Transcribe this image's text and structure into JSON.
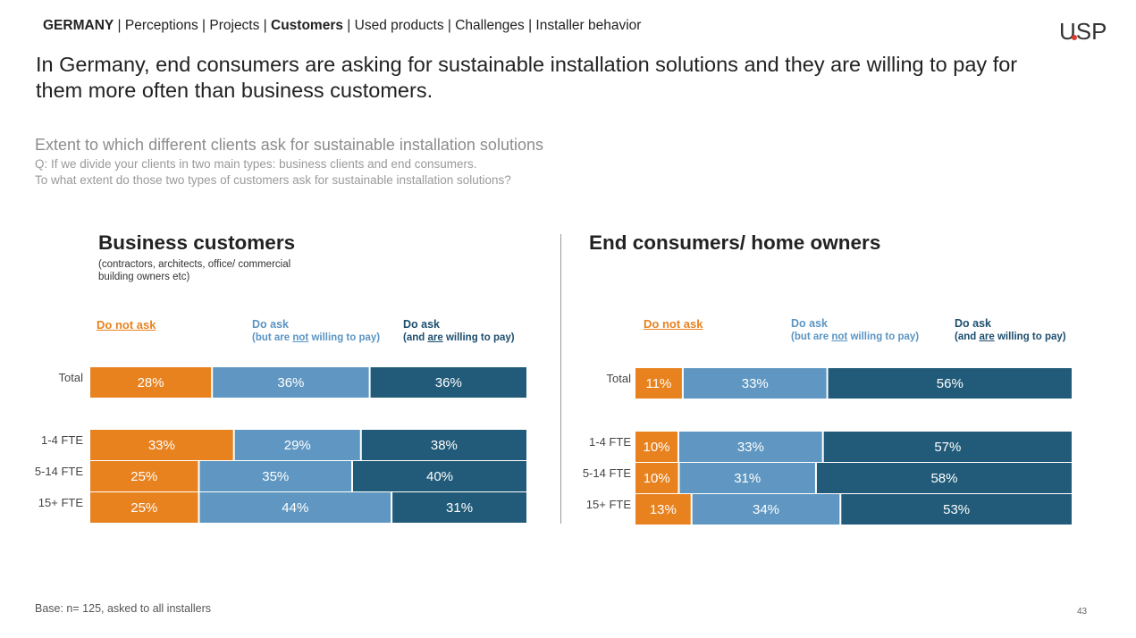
{
  "breadcrumb": {
    "country": "GERMANY",
    "sep": " | ",
    "items": [
      "Perceptions",
      "Projects",
      "Customers",
      "Used products",
      "Challenges",
      "Installer behavior"
    ],
    "active": "Customers"
  },
  "logo": "USP",
  "headline": "In Germany, end consumers are asking for sustainable installation solutions and they are willing to pay for them more often than business customers.",
  "subtitle": "Extent to which different clients ask for sustainable installation solutions",
  "question_line1": "Q: If we divide your clients in two main types: business clients and end consumers.",
  "question_line2": "To what extent do those two types of customers ask for sustainable installation solutions?",
  "legend": {
    "not_ask": "Do not ask",
    "ask_not_pay_title": "Do ask",
    "ask_not_pay_sub_pre": "(but are ",
    "ask_not_pay_sub_u": "not",
    "ask_not_pay_sub_post": " willing to pay)",
    "ask_pay_title": "Do ask",
    "ask_pay_sub_pre": "(and ",
    "ask_pay_sub_u": "are",
    "ask_pay_sub_post": " willing to pay)"
  },
  "colors": {
    "not_ask": "#e8821f",
    "ask_not_pay": "#5f97c2",
    "ask_pay": "#215b79"
  },
  "footer": "Base: n= 125, asked to all installers",
  "page_number": "43",
  "chart_data": [
    {
      "type": "bar",
      "orientation": "horizontal-stacked-100",
      "title": "Business customers",
      "subtitle": "(contractors, architects, office/ commercial building owners etc)",
      "categories": [
        "Total",
        "1-4 FTE",
        "5-14 FTE",
        "15+ FTE"
      ],
      "series": [
        {
          "name": "Do not ask",
          "values": [
            28,
            33,
            25,
            25
          ]
        },
        {
          "name": "Do ask (but are not willing to pay)",
          "values": [
            36,
            29,
            35,
            44
          ]
        },
        {
          "name": "Do ask (and are willing to pay)",
          "values": [
            36,
            38,
            40,
            31
          ]
        }
      ],
      "labels": [
        [
          "28%",
          "33%",
          "25%",
          "25%"
        ],
        [
          "36%",
          "29%",
          "35%",
          "44%"
        ],
        [
          "36%",
          "38%",
          "40%",
          "31%"
        ]
      ]
    },
    {
      "type": "bar",
      "orientation": "horizontal-stacked-100",
      "title": "End consumers/ home owners",
      "subtitle": "",
      "categories": [
        "Total",
        "1-4 FTE",
        "5-14 FTE",
        "15+ FTE"
      ],
      "series": [
        {
          "name": "Do not ask",
          "values": [
            11,
            10,
            10,
            13
          ]
        },
        {
          "name": "Do ask (but are not willing to pay)",
          "values": [
            33,
            33,
            31,
            34
          ]
        },
        {
          "name": "Do ask (and are willing to pay)",
          "values": [
            56,
            57,
            58,
            53
          ]
        }
      ],
      "labels": [
        [
          "11%",
          "10%",
          "10%",
          "13%"
        ],
        [
          "33%",
          "33%",
          "31%",
          "34%"
        ],
        [
          "56%",
          "57%",
          "58%",
          "53%"
        ]
      ]
    }
  ]
}
